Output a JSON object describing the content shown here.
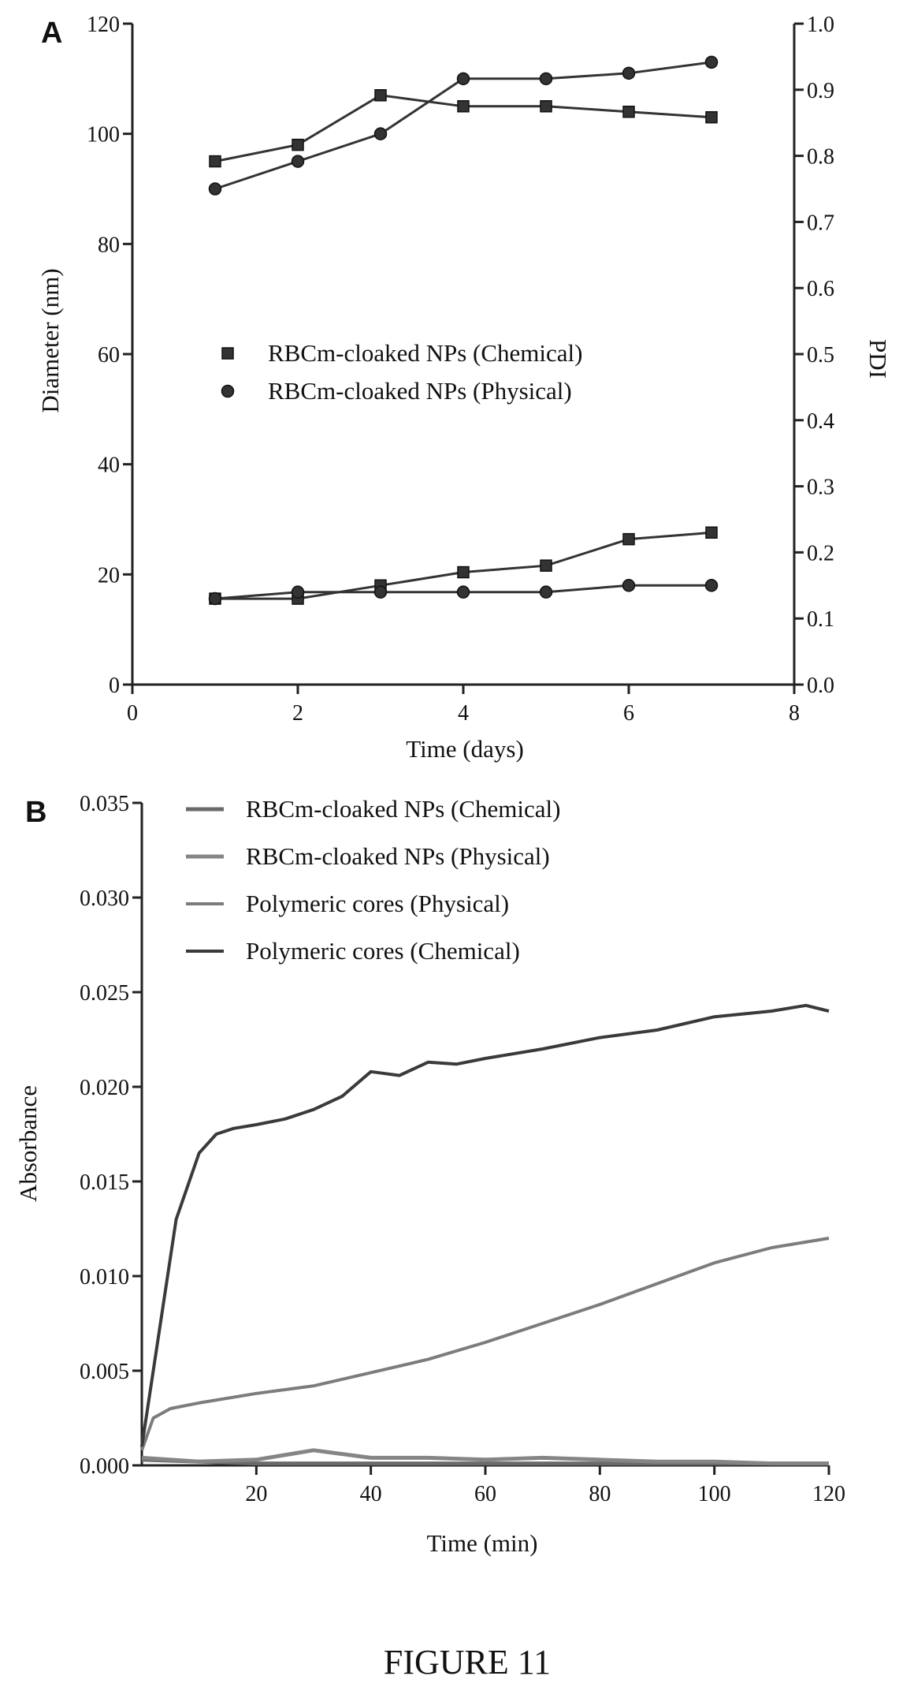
{
  "figure_caption": "FIGURE 11",
  "chart_data": [
    {
      "panel": "A",
      "type": "line",
      "xlabel": "Time (days)",
      "ylabel_left": "Diameter (nm)",
      "ylabel_right": "PDI",
      "xlim": [
        0,
        8
      ],
      "ylim_left": [
        0,
        120
      ],
      "ylim_right": [
        0.0,
        1.0
      ],
      "x_ticks": [
        "0",
        "2",
        "4",
        "6",
        "8"
      ],
      "y_left_ticks": [
        "0",
        "20",
        "40",
        "60",
        "80",
        "100",
        "120"
      ],
      "y_right_ticks": [
        "0.0",
        "0.1",
        "0.2",
        "0.3",
        "0.4",
        "0.5",
        "0.6",
        "0.7",
        "0.8",
        "0.9",
        "1.0"
      ],
      "legend": [
        {
          "label": "RBCm-cloaked NPs (Chemical)",
          "marker": "square"
        },
        {
          "label": "RBCm-cloaked NPs (Physical)",
          "marker": "circle"
        }
      ],
      "series": [
        {
          "name": "RBCm-cloaked NPs (Chemical)",
          "quantity": "Diameter",
          "axis": "left",
          "marker": "square",
          "x": [
            1,
            2,
            3,
            4,
            5,
            6,
            7
          ],
          "values": [
            95,
            98,
            107,
            105,
            105,
            104,
            103
          ]
        },
        {
          "name": "RBCm-cloaked NPs (Physical)",
          "quantity": "Diameter",
          "axis": "left",
          "marker": "circle",
          "x": [
            1,
            2,
            3,
            4,
            5,
            6,
            7
          ],
          "values": [
            90,
            95,
            100,
            110,
            110,
            111,
            113
          ]
        },
        {
          "name": "RBCm-cloaked NPs (Chemical)",
          "quantity": "PDI",
          "axis": "right",
          "marker": "square",
          "x": [
            1,
            2,
            3,
            4,
            5,
            6,
            7
          ],
          "values": [
            0.13,
            0.13,
            0.15,
            0.17,
            0.18,
            0.22,
            0.23
          ]
        },
        {
          "name": "RBCm-cloaked NPs (Physical)",
          "quantity": "PDI",
          "axis": "right",
          "marker": "circle",
          "x": [
            1,
            2,
            3,
            4,
            5,
            6,
            7
          ],
          "values": [
            0.13,
            0.14,
            0.14,
            0.14,
            0.14,
            0.15,
            0.15
          ]
        }
      ]
    },
    {
      "panel": "B",
      "type": "line",
      "xlabel": "Time (min)",
      "ylabel": "Absorbance",
      "xlim": [
        0,
        120
      ],
      "ylim": [
        0,
        0.035
      ],
      "x_ticks": [
        "20",
        "40",
        "60",
        "80",
        "100",
        "120"
      ],
      "y_ticks": [
        "0.000",
        "0.005",
        "0.010",
        "0.015",
        "0.020",
        "0.025",
        "0.030",
        "0.035"
      ],
      "legend": [
        {
          "label": "RBCm-cloaked NPs (Chemical)"
        },
        {
          "label": "RBCm-cloaked NPs (Physical)"
        },
        {
          "label": "Polymeric cores (Physical)"
        },
        {
          "label": "Polymeric cores (Chemical)"
        }
      ],
      "series": [
        {
          "name": "RBCm-cloaked NPs (Chemical)",
          "x": [
            0,
            10,
            20,
            30,
            40,
            50,
            60,
            70,
            80,
            90,
            100,
            110,
            120
          ],
          "values": [
            0.0003,
            0.0002,
            0.0001,
            0.0001,
            0.0001,
            0.0001,
            0.0001,
            0.0001,
            0.0001,
            0.0001,
            0.0001,
            0.0001,
            0.0001
          ]
        },
        {
          "name": "RBCm-cloaked NPs (Physical)",
          "x": [
            0,
            10,
            20,
            30,
            40,
            50,
            60,
            70,
            80,
            90,
            100,
            110,
            120
          ],
          "values": [
            0.0004,
            0.0002,
            0.0003,
            0.0008,
            0.0004,
            0.0004,
            0.0003,
            0.0004,
            0.0003,
            0.0002,
            0.0002,
            0.0001,
            0.0001
          ]
        },
        {
          "name": "Polymeric cores (Physical)",
          "x": [
            0,
            2,
            5,
            10,
            20,
            30,
            40,
            50,
            60,
            70,
            80,
            90,
            100,
            110,
            120
          ],
          "values": [
            0.0008,
            0.0025,
            0.003,
            0.0033,
            0.0038,
            0.0042,
            0.0049,
            0.0056,
            0.0065,
            0.0075,
            0.0085,
            0.0096,
            0.0107,
            0.0115,
            0.012
          ]
        },
        {
          "name": "Polymeric cores (Chemical)",
          "x": [
            0,
            3,
            6,
            10,
            13,
            16,
            20,
            25,
            30,
            35,
            40,
            45,
            50,
            55,
            60,
            70,
            80,
            90,
            100,
            110,
            116,
            120
          ],
          "values": [
            0.001,
            0.007,
            0.013,
            0.0165,
            0.0175,
            0.0178,
            0.018,
            0.0183,
            0.0188,
            0.0195,
            0.0208,
            0.0206,
            0.0213,
            0.0212,
            0.0215,
            0.022,
            0.0226,
            0.023,
            0.0237,
            0.024,
            0.0243,
            0.024
          ]
        }
      ]
    }
  ]
}
